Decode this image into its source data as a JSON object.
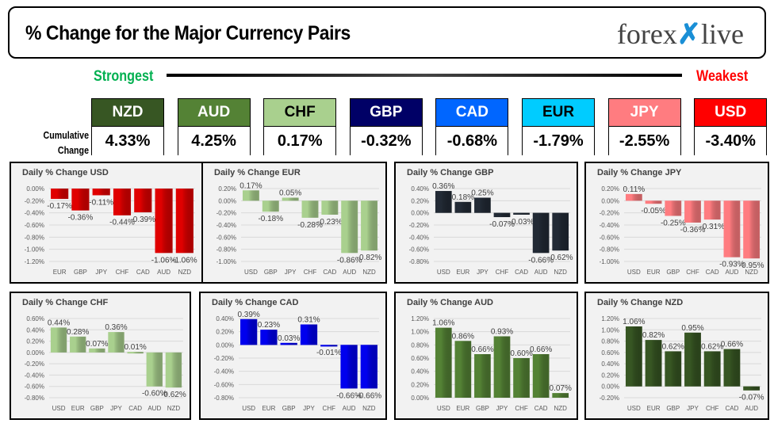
{
  "header": {
    "title": "% Change for the Major Currency Pairs",
    "logo": "forexlive"
  },
  "scale": {
    "strongest": "Strongest",
    "weakest": "Weakest",
    "cumulative_label_1": "Cumulative",
    "cumulative_label_2": "Change"
  },
  "currencies": [
    {
      "code": "NZD",
      "value": "4.33%",
      "color": "#375623",
      "text": "#ffffff"
    },
    {
      "code": "AUD",
      "value": "4.25%",
      "color": "#548235",
      "text": "#ffffff"
    },
    {
      "code": "CHF",
      "value": "0.17%",
      "color": "#a9d08e",
      "text": "#000000"
    },
    {
      "code": "GBP",
      "value": "-0.32%",
      "color": "#000066",
      "text": "#ffffff"
    },
    {
      "code": "CAD",
      "value": "-0.68%",
      "color": "#0066ff",
      "text": "#ffffff"
    },
    {
      "code": "EUR",
      "value": "-1.79%",
      "color": "#00ccff",
      "text": "#000000"
    },
    {
      "code": "JPY",
      "value": "-2.55%",
      "color": "#ff7c80",
      "text": "#ffffff"
    },
    {
      "code": "USD",
      "value": "-3.40%",
      "color": "#ff0000",
      "text": "#ffffff"
    }
  ],
  "chart_data": [
    {
      "type": "bar",
      "title": "Daily % Change USD",
      "categories": [
        "EUR",
        "GBP",
        "JPY",
        "CHF",
        "CAD",
        "AUD",
        "NZD"
      ],
      "values": [
        -0.17,
        -0.36,
        -0.11,
        -0.44,
        -0.39,
        -1.06,
        -1.06
      ],
      "ylim": [
        -1.2,
        0
      ],
      "ystep": 0.2,
      "color": "#e00000",
      "grid": true
    },
    {
      "type": "bar",
      "title": "Daily % Change EUR",
      "categories": [
        "USD",
        "GBP",
        "JPY",
        "CHF",
        "CAD",
        "AUD",
        "NZD"
      ],
      "values": [
        0.17,
        -0.18,
        0.05,
        -0.28,
        -0.23,
        -0.86,
        -0.82
      ],
      "ylim": [
        -1.0,
        0.2
      ],
      "ystep": 0.2,
      "color": "#a9d08e",
      "grid": true
    },
    {
      "type": "bar",
      "title": "Daily % Change GBP",
      "categories": [
        "USD",
        "EUR",
        "JPY",
        "CHF",
        "CAD",
        "AUD",
        "NZD"
      ],
      "values": [
        0.36,
        0.18,
        0.25,
        -0.07,
        -0.03,
        -0.66,
        -0.62
      ],
      "ylim": [
        -0.8,
        0.4
      ],
      "ystep": 0.2,
      "color": "#222a35",
      "grid": true
    },
    {
      "type": "bar",
      "title": "Daily % Change JPY",
      "categories": [
        "USD",
        "EUR",
        "GBP",
        "CHF",
        "CAD",
        "AUD",
        "NZD"
      ],
      "values": [
        0.11,
        -0.05,
        -0.25,
        -0.36,
        -0.31,
        -0.93,
        -0.95
      ],
      "ylim": [
        -1.0,
        0.2
      ],
      "ystep": 0.2,
      "color": "#ff7c80",
      "grid": true
    },
    {
      "type": "bar",
      "title": "Daily % Change CHF",
      "categories": [
        "USD",
        "EUR",
        "GBP",
        "JPY",
        "CAD",
        "AUD",
        "NZD"
      ],
      "values": [
        0.44,
        0.28,
        0.07,
        0.36,
        0.01,
        -0.6,
        -0.62
      ],
      "ylim": [
        -0.8,
        0.6
      ],
      "ystep": 0.2,
      "color": "#a9d08e",
      "grid": true
    },
    {
      "type": "bar",
      "title": "Daily % Change CAD",
      "categories": [
        "USD",
        "EUR",
        "GBP",
        "JPY",
        "CHF",
        "AUD",
        "NZD"
      ],
      "values": [
        0.39,
        0.23,
        0.03,
        0.31,
        -0.01,
        -0.66,
        -0.66
      ],
      "ylim": [
        -0.8,
        0.4
      ],
      "ystep": 0.2,
      "color": "#0000ee",
      "grid": true
    },
    {
      "type": "bar",
      "title": "Daily % Change AUD",
      "categories": [
        "USD",
        "EUR",
        "GBP",
        "JPY",
        "CHF",
        "CAD",
        "NZD"
      ],
      "values": [
        1.06,
        0.86,
        0.66,
        0.93,
        0.6,
        0.66,
        0.07
      ],
      "ylim": [
        0,
        1.2
      ],
      "ystep": 0.2,
      "color": "#548235",
      "grid": true
    },
    {
      "type": "bar",
      "title": "Daily % Change NZD",
      "categories": [
        "USD",
        "EUR",
        "GBP",
        "JPY",
        "CHF",
        "CAD",
        "AUD"
      ],
      "values": [
        1.06,
        0.82,
        0.62,
        0.95,
        0.62,
        0.66,
        -0.07
      ],
      "ylim": [
        -0.2,
        1.2
      ],
      "ystep": 0.2,
      "color": "#375623",
      "grid": true
    }
  ]
}
